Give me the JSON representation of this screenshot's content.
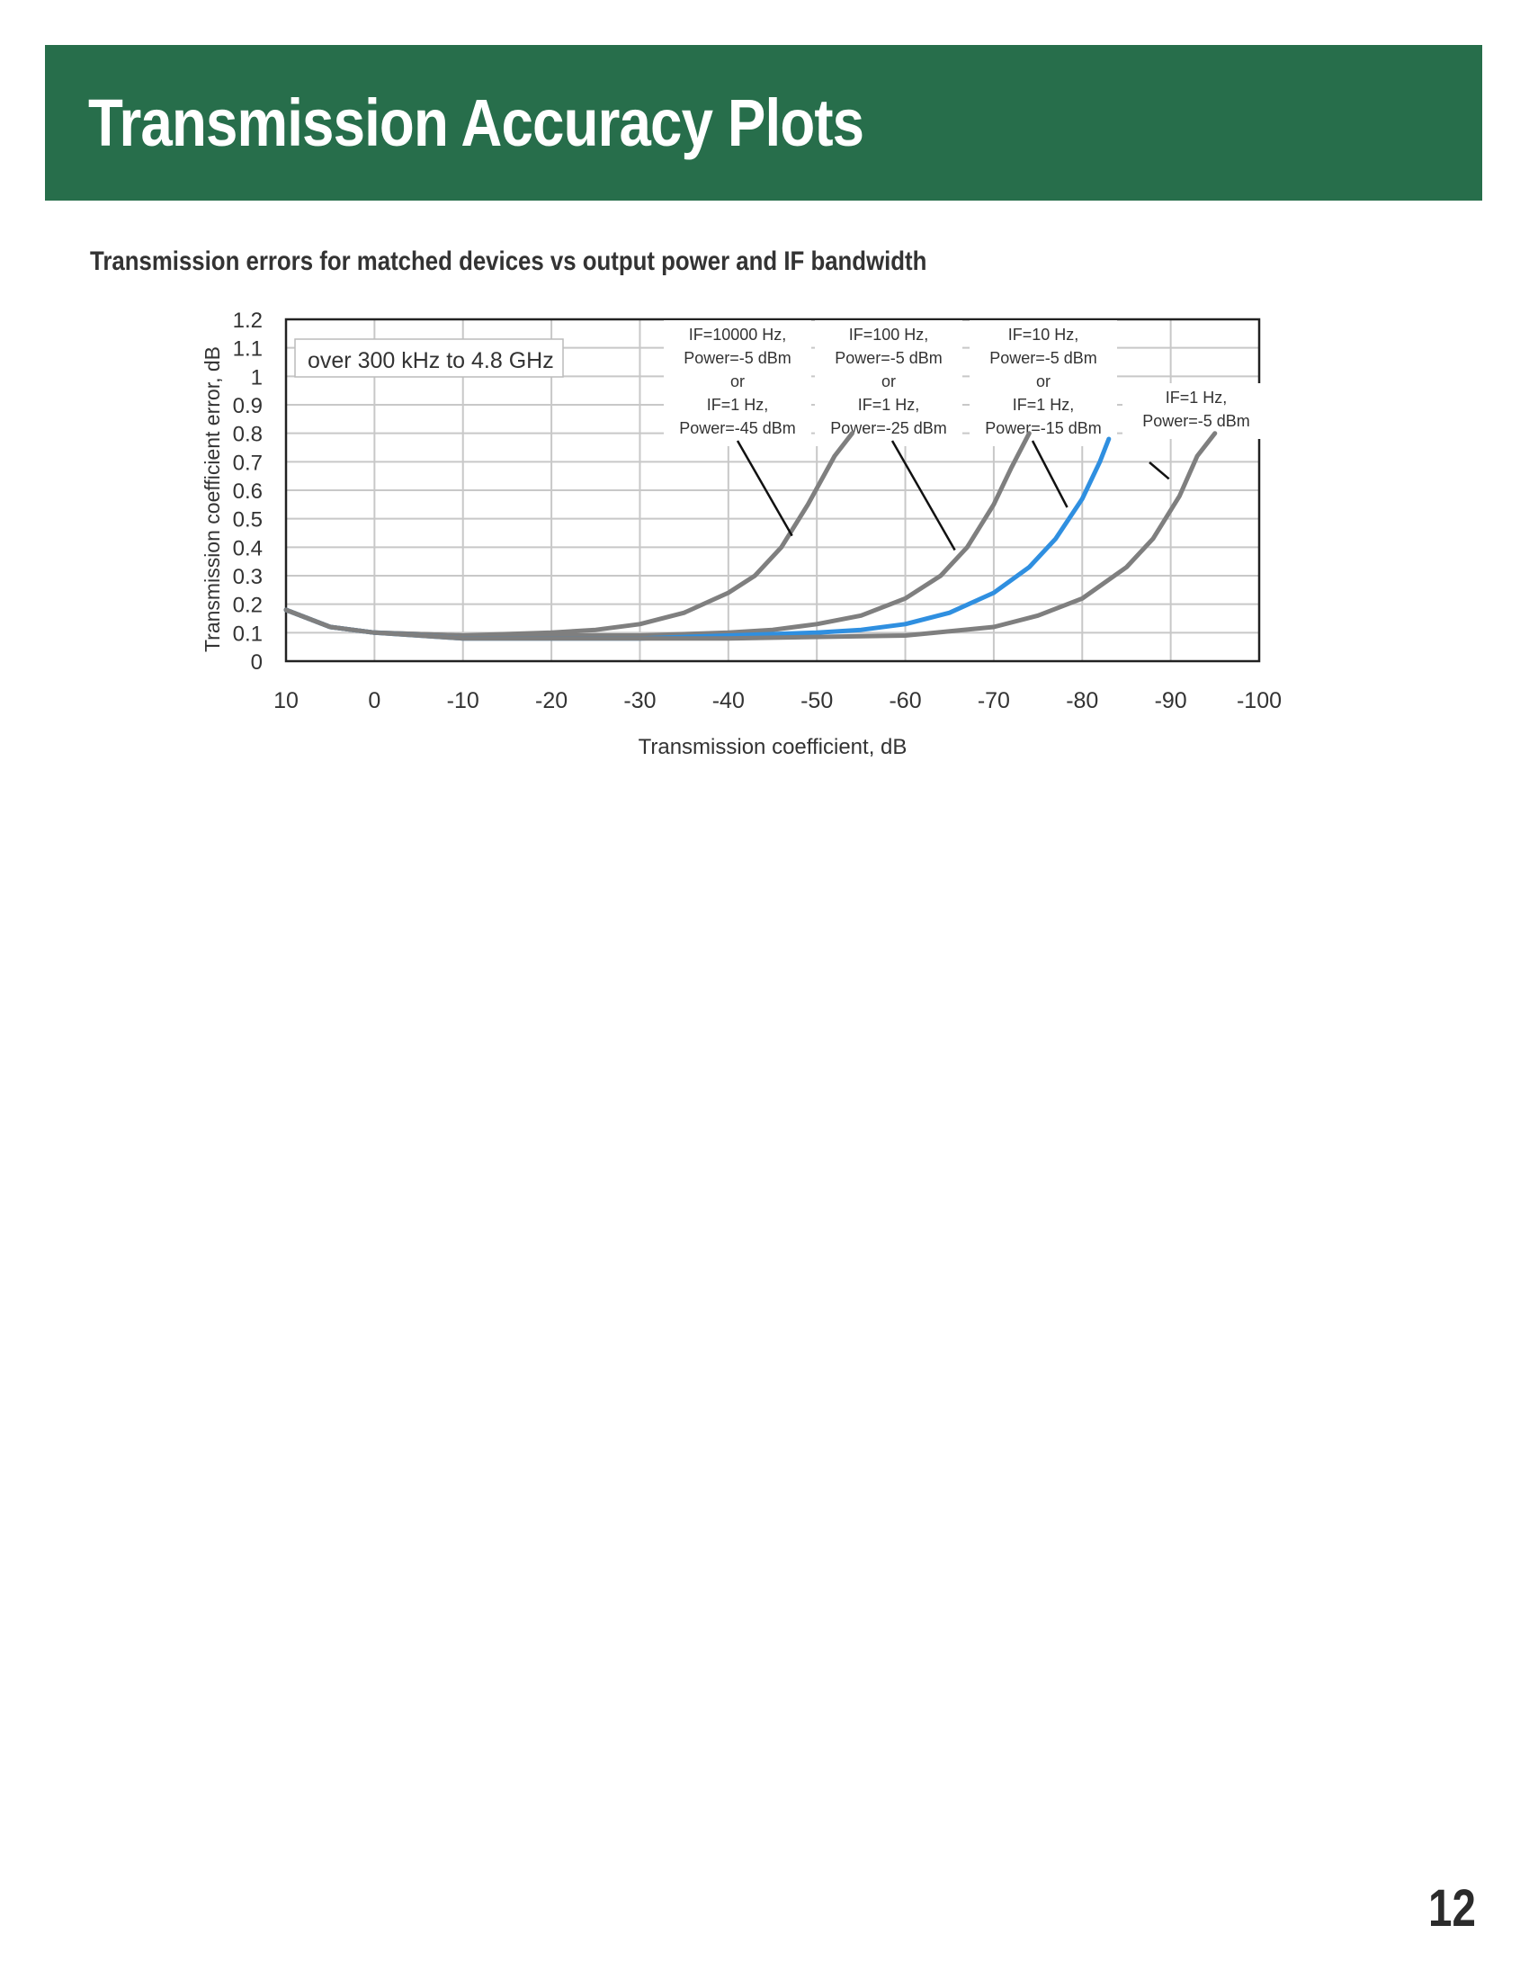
{
  "header": {
    "title": "Transmission Accuracy Plots"
  },
  "figure": {
    "caption": "Transmission errors for matched devices vs output power and IF bandwidth"
  },
  "page": {
    "number": "12"
  },
  "colors": {
    "banner": "#276e4b",
    "curve_gray": "#7f7f7f",
    "curve_blue": "#2f8fe0",
    "grid": "#c8c8c8"
  },
  "chart_data": {
    "type": "line",
    "title": "",
    "xlabel": "Transmission coefficient, dB",
    "ylabel": "Transmission coefficient error, dB",
    "xlim": [
      10,
      -100
    ],
    "ylim": [
      0,
      1.2
    ],
    "x_ticks": [
      10,
      0,
      -10,
      -20,
      -30,
      -40,
      -50,
      -60,
      -70,
      -80,
      -90,
      -100
    ],
    "x_tick_labels": [
      "10",
      "0",
      "-10",
      "-20",
      "-30",
      "-40",
      "-50",
      "-60",
      "-70",
      "-80",
      "-90",
      "-100"
    ],
    "y_ticks": [
      1.2,
      1.1,
      1,
      0.9,
      0.8,
      0.7,
      0.6,
      0.5,
      0.4,
      0.3,
      0.2,
      0.1,
      0
    ],
    "y_tick_labels": [
      "1.2",
      "1.1",
      "1",
      "0.9",
      "0.8",
      "0.7",
      "0.6",
      "0.5",
      "0.4",
      "0.3",
      "0.2",
      "0.1",
      "0"
    ],
    "grid": true,
    "inset_label": "over 300 kHz to 4.8 GHz",
    "series": [
      {
        "color": "#7f7f7f",
        "label_lines": [
          "IF=10000 Hz,",
          "Power=-5 dBm",
          "or",
          "IF=1 Hz,",
          "Power=-45 dBm"
        ],
        "x": [
          10,
          5,
          0,
          -10,
          -20,
          -25,
          -30,
          -35,
          -40,
          -43,
          -46,
          -49,
          -52,
          -54
        ],
        "y": [
          0.18,
          0.12,
          0.1,
          0.09,
          0.1,
          0.11,
          0.13,
          0.17,
          0.24,
          0.3,
          0.4,
          0.55,
          0.72,
          0.8
        ]
      },
      {
        "color": "#7f7f7f",
        "label_lines": [
          "IF=100 Hz,",
          "Power=-5 dBm",
          "or",
          "IF=1 Hz,",
          "Power=-25 dBm"
        ],
        "x": [
          10,
          5,
          0,
          -10,
          -20,
          -30,
          -40,
          -45,
          -50,
          -55,
          -60,
          -64,
          -67,
          -70,
          -72,
          -74
        ],
        "y": [
          0.18,
          0.12,
          0.1,
          0.09,
          0.09,
          0.09,
          0.1,
          0.11,
          0.13,
          0.16,
          0.22,
          0.3,
          0.4,
          0.55,
          0.68,
          0.8
        ]
      },
      {
        "color": "#2f8fe0",
        "label_lines": [
          "IF=10 Hz,",
          "Power=-5 dBm",
          "or",
          "IF=1 Hz,",
          "Power=-15 dBm"
        ],
        "x": [
          10,
          5,
          0,
          -10,
          -20,
          -30,
          -40,
          -50,
          -55,
          -60,
          -65,
          -70,
          -74,
          -77,
          -80,
          -82,
          -83
        ],
        "y": [
          0.18,
          0.12,
          0.1,
          0.08,
          0.08,
          0.08,
          0.09,
          0.1,
          0.11,
          0.13,
          0.17,
          0.24,
          0.33,
          0.43,
          0.57,
          0.7,
          0.78
        ]
      },
      {
        "color": "#7f7f7f",
        "label_lines": [
          "IF=1 Hz,",
          "Power=-5 dBm"
        ],
        "x": [
          10,
          5,
          0,
          -10,
          -20,
          -40,
          -60,
          -70,
          -75,
          -80,
          -85,
          -88,
          -91,
          -93,
          -95
        ],
        "y": [
          0.18,
          0.12,
          0.1,
          0.08,
          0.08,
          0.08,
          0.09,
          0.12,
          0.16,
          0.22,
          0.33,
          0.43,
          0.58,
          0.72,
          0.8
        ]
      }
    ]
  }
}
